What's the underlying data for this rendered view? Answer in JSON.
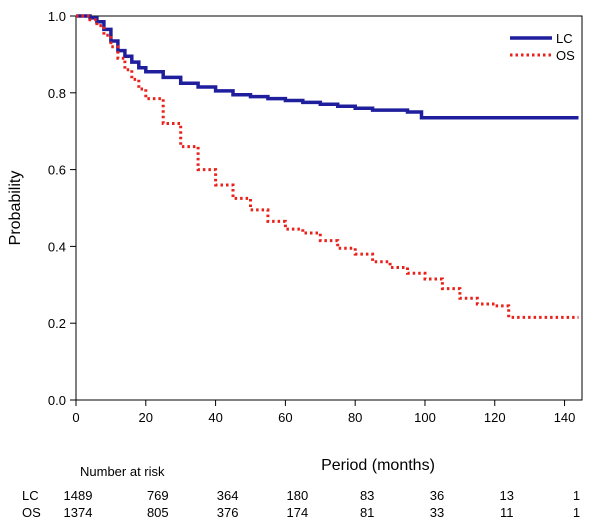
{
  "chart_data": {
    "type": "line",
    "xlabel": "Period (months)",
    "ylabel": "Probability",
    "xlim": [
      0,
      145
    ],
    "ylim": [
      0,
      1.0
    ],
    "x_ticks": [
      "0",
      "20",
      "40",
      "60",
      "80",
      "100",
      "120",
      "140"
    ],
    "y_ticks": [
      "0.0",
      "0.2",
      "0.4",
      "0.6",
      "0.8",
      "1.0"
    ],
    "grid": false,
    "legend_position": "top-right",
    "series": [
      {
        "name": "LC",
        "color": "#1f1f9e",
        "style": "solid",
        "x": [
          0,
          2,
          4,
          6,
          8,
          10,
          12,
          14,
          16,
          18,
          20,
          25,
          30,
          35,
          40,
          45,
          50,
          55,
          60,
          65,
          70,
          75,
          80,
          85,
          90,
          95,
          99,
          105,
          110,
          120,
          130,
          144
        ],
        "y": [
          1.0,
          1.0,
          0.995,
          0.985,
          0.965,
          0.935,
          0.91,
          0.895,
          0.88,
          0.865,
          0.855,
          0.84,
          0.825,
          0.815,
          0.805,
          0.795,
          0.79,
          0.785,
          0.78,
          0.775,
          0.77,
          0.765,
          0.76,
          0.755,
          0.755,
          0.75,
          0.735,
          0.735,
          0.735,
          0.735,
          0.735,
          0.735
        ]
      },
      {
        "name": "OS",
        "color": "#e8221a",
        "style": "dotted",
        "x": [
          0,
          2,
          4,
          6,
          8,
          10,
          12,
          14,
          16,
          18,
          20,
          25,
          30,
          35,
          40,
          45,
          50,
          55,
          60,
          65,
          70,
          75,
          80,
          85,
          90,
          95,
          100,
          105,
          110,
          115,
          120,
          124,
          130,
          144
        ],
        "y": [
          1.0,
          1.0,
          0.99,
          0.975,
          0.95,
          0.92,
          0.89,
          0.86,
          0.835,
          0.81,
          0.785,
          0.72,
          0.66,
          0.6,
          0.56,
          0.525,
          0.495,
          0.465,
          0.445,
          0.435,
          0.415,
          0.395,
          0.38,
          0.36,
          0.345,
          0.33,
          0.315,
          0.29,
          0.265,
          0.25,
          0.245,
          0.215,
          0.215,
          0.215
        ]
      }
    ],
    "risk_table": {
      "title": "Number at risk",
      "times": [
        0,
        20,
        40,
        60,
        80,
        100,
        120,
        140
      ],
      "rows": [
        {
          "label": "LC",
          "values": [
            "1489",
            "769",
            "364",
            "180",
            "83",
            "36",
            "13",
            "1"
          ]
        },
        {
          "label": "OS",
          "values": [
            "1374",
            "805",
            "376",
            "174",
            "81",
            "33",
            "11",
            "1"
          ]
        }
      ]
    }
  }
}
